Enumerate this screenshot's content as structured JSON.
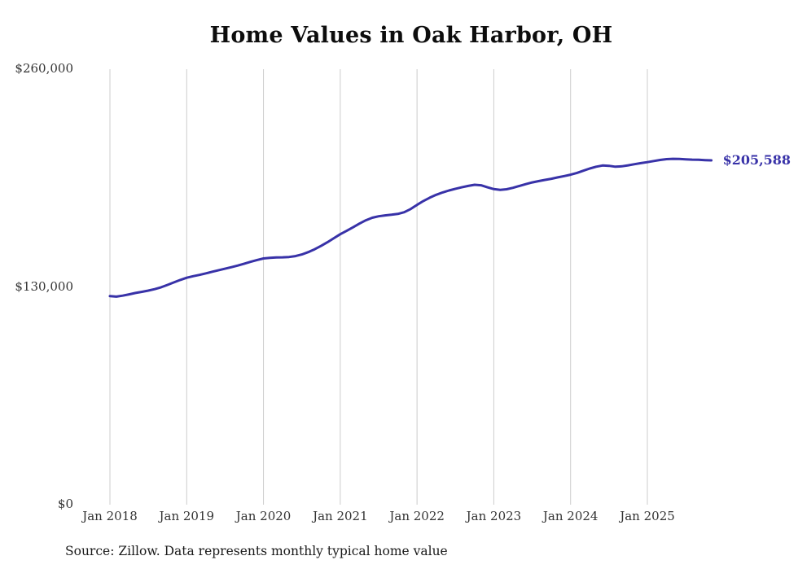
{
  "source_note": "Source: Zillow. Data represents monthly typical home value",
  "colors": {
    "line": "#3832a8",
    "grid": "#cccccc",
    "title_text": "#0d0d0d",
    "axis_text": "#333333",
    "source_text": "#1a1a1a",
    "background": "#ffffff"
  },
  "chart_data": {
    "type": "line",
    "title": "Home Values in Oak Harbor, OH",
    "series_name": "Monthly typical home value",
    "latest_value": 205588,
    "end_label": "$205,588",
    "ylim": [
      0,
      260000
    ],
    "grid": "vertical-only",
    "legend": "none",
    "yticks": [
      {
        "value": 260000,
        "label": "$260,000"
      },
      {
        "value": 130000,
        "label": "$130,000"
      },
      {
        "value": 0,
        "label": "$0"
      }
    ],
    "xticks": [
      "Jan 2018",
      "Jan 2019",
      "Jan 2020",
      "Jan 2021",
      "Jan 2022",
      "Jan 2023",
      "Jan 2024",
      "Jan 2025"
    ],
    "x": [
      "2018-01",
      "2018-02",
      "2018-03",
      "2018-04",
      "2018-05",
      "2018-06",
      "2018-07",
      "2018-08",
      "2018-09",
      "2018-10",
      "2018-11",
      "2018-12",
      "2019-01",
      "2019-02",
      "2019-03",
      "2019-04",
      "2019-05",
      "2019-06",
      "2019-07",
      "2019-08",
      "2019-09",
      "2019-10",
      "2019-11",
      "2019-12",
      "2020-01",
      "2020-02",
      "2020-03",
      "2020-04",
      "2020-05",
      "2020-06",
      "2020-07",
      "2020-08",
      "2020-09",
      "2020-10",
      "2020-11",
      "2020-12",
      "2021-01",
      "2021-02",
      "2021-03",
      "2021-04",
      "2021-05",
      "2021-06",
      "2021-07",
      "2021-08",
      "2021-09",
      "2021-10",
      "2021-11",
      "2021-12",
      "2022-01",
      "2022-02",
      "2022-03",
      "2022-04",
      "2022-05",
      "2022-06",
      "2022-07",
      "2022-08",
      "2022-09",
      "2022-10",
      "2022-11",
      "2022-12",
      "2023-01",
      "2023-02",
      "2023-03",
      "2023-04",
      "2023-05",
      "2023-06",
      "2023-07",
      "2023-08",
      "2023-09",
      "2023-10",
      "2023-11",
      "2023-12",
      "2024-01",
      "2024-02",
      "2024-03",
      "2024-04",
      "2024-05",
      "2024-06",
      "2024-07",
      "2024-08",
      "2024-09",
      "2024-10",
      "2024-11",
      "2024-12",
      "2025-01",
      "2025-02",
      "2025-03",
      "2025-04",
      "2025-05",
      "2025-06",
      "2025-07",
      "2025-08",
      "2025-09",
      "2025-10",
      "2025-11"
    ],
    "values": [
      124500,
      124200,
      124800,
      125600,
      126400,
      127100,
      127800,
      128700,
      129800,
      131200,
      132700,
      134200,
      135500,
      136400,
      137200,
      138100,
      139100,
      140000,
      140900,
      141800,
      142800,
      143900,
      145000,
      146100,
      147000,
      147400,
      147600,
      147700,
      147900,
      148400,
      149400,
      150800,
      152500,
      154500,
      156700,
      159100,
      161500,
      163500,
      165600,
      167800,
      169800,
      171300,
      172200,
      172700,
      173100,
      173600,
      174600,
      176500,
      179000,
      181300,
      183300,
      185000,
      186400,
      187600,
      188600,
      189500,
      190300,
      191000,
      190700,
      189500,
      188400,
      188000,
      188300,
      189200,
      190300,
      191400,
      192400,
      193200,
      193900,
      194600,
      195400,
      196200,
      197000,
      198100,
      199400,
      200700,
      201800,
      202500,
      202300,
      201800,
      202000,
      202600,
      203300,
      203900,
      204500,
      205200,
      205800,
      206300,
      206500,
      206400,
      206200,
      206000,
      205900,
      205700,
      205588
    ]
  }
}
